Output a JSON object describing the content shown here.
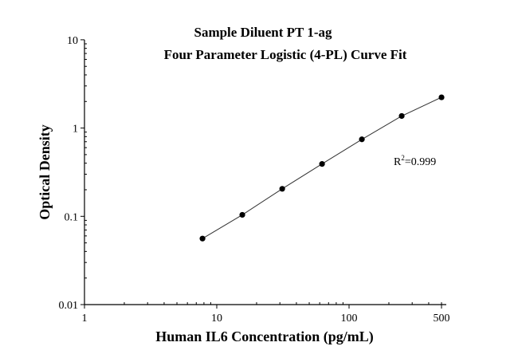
{
  "chart_data": {
    "type": "scatter",
    "title": "Sample Diluent PT 1-ag",
    "subtitle": "Four Parameter Logistic (4-PL) Curve Fit",
    "xlabel": "Human IL6 Concentration (pg/mL)",
    "ylabel": "Optical Density",
    "x_scale": "log",
    "y_scale": "log",
    "xlim": [
      1,
      500
    ],
    "ylim": [
      0.01,
      10
    ],
    "x_ticks": [
      "1",
      "10",
      "100",
      "500"
    ],
    "y_ticks": [
      "0.01",
      "0.1",
      "1",
      "10"
    ],
    "grid": false,
    "series": [
      {
        "x": [
          7.8,
          15.6,
          31.25,
          62.5,
          125,
          250,
          500
        ],
        "y": [
          0.056,
          0.104,
          0.205,
          0.392,
          0.745,
          1.37,
          2.23
        ],
        "fit": "4-PL curve"
      }
    ],
    "annotation": {
      "r2_prefix": "R",
      "r2_sup": "2",
      "r2_value": "=0.999"
    },
    "colors": {
      "points": "#000000",
      "line": "#333333"
    }
  }
}
